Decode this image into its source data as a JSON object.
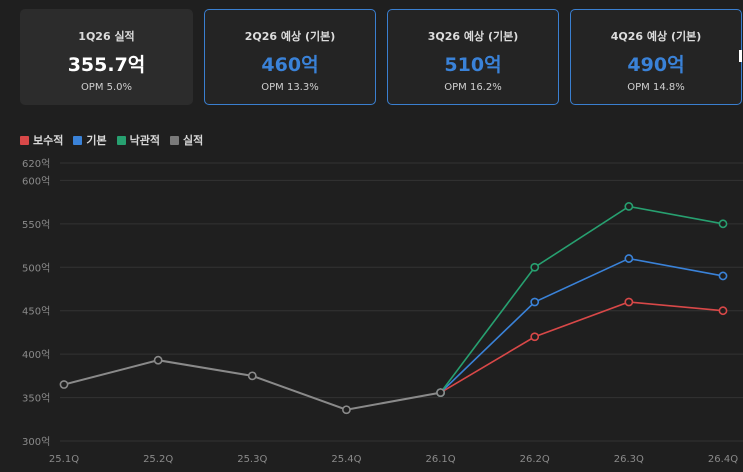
{
  "cards": [
    {
      "title": "1Q26 실적",
      "value": "355.7억",
      "opm": "OPM 5.0%"
    },
    {
      "title": "2Q26 예상 (기본)",
      "value": "460억",
      "opm": "OPM 13.3%"
    },
    {
      "title": "3Q26 예상 (기본)",
      "value": "510억",
      "opm": "OPM 16.2%"
    },
    {
      "title": "4Q26 예상 (기본)",
      "value": "490억",
      "opm": "OPM 14.8%"
    }
  ],
  "legend": [
    {
      "label": "보수적",
      "color": "#d84848"
    },
    {
      "label": "기본",
      "color": "#3a82d8"
    },
    {
      "label": "낙관적",
      "color": "#27a070"
    },
    {
      "label": "실적",
      "color": "#7a7a7a"
    }
  ],
  "chart_data": {
    "type": "line",
    "categories": [
      "25.1Q",
      "25.2Q",
      "25.3Q",
      "25.4Q",
      "26.1Q",
      "26.2Q",
      "26.3Q",
      "26.4Q"
    ],
    "y_ticks": [
      "300억",
      "350억",
      "400억",
      "450억",
      "500억",
      "550억",
      "600억",
      "620억"
    ],
    "ylim": [
      300,
      620
    ],
    "series": [
      {
        "name": "실적",
        "color": "#8a8a8a",
        "values": [
          365,
          393,
          375,
          336,
          355.7,
          null,
          null,
          null
        ]
      },
      {
        "name": "보수적",
        "color": "#d84848",
        "values": [
          null,
          null,
          null,
          null,
          355.7,
          420,
          460,
          450
        ]
      },
      {
        "name": "기본",
        "color": "#3a82d8",
        "values": [
          null,
          null,
          null,
          null,
          355.7,
          460,
          510,
          490
        ]
      },
      {
        "name": "낙관적",
        "color": "#27a070",
        "values": [
          null,
          null,
          null,
          null,
          355.7,
          500,
          570,
          550
        ]
      }
    ]
  }
}
